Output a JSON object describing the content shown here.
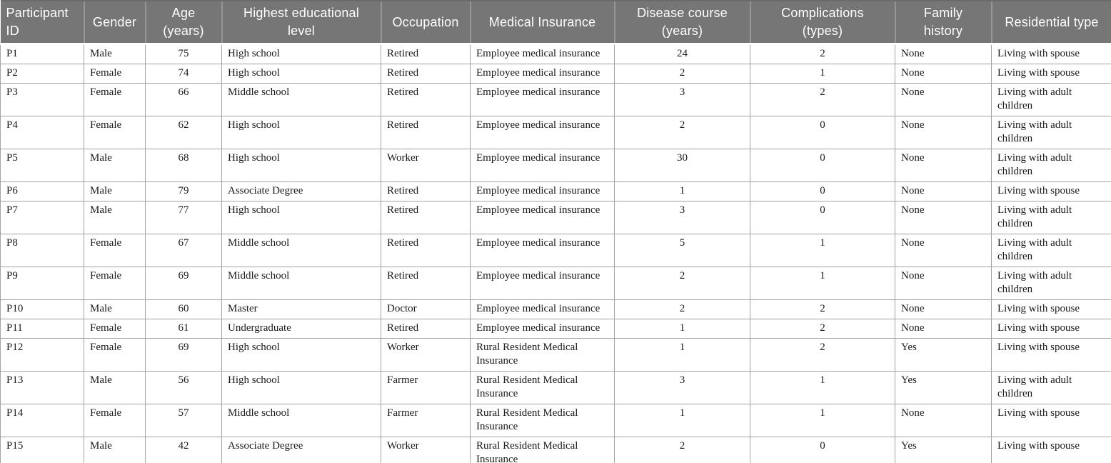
{
  "colors": {
    "header_background": "#767676",
    "header_text": "#ffffff",
    "cell_border": "#a3a3a3",
    "body_text": "#1a1a1a",
    "bottom_rule": "#8f8f8f"
  },
  "table": {
    "columns": [
      {
        "key": "participant-id",
        "label": "Participant ID"
      },
      {
        "key": "gender",
        "label": "Gender"
      },
      {
        "key": "age",
        "label": "Age\n(years)"
      },
      {
        "key": "education",
        "label": "Highest educational\nlevel"
      },
      {
        "key": "occupation",
        "label": "Occupation"
      },
      {
        "key": "medical-insurance",
        "label": "Medical Insurance"
      },
      {
        "key": "disease-course",
        "label": "Disease course\n(years)"
      },
      {
        "key": "complications",
        "label": "Complications\n(types)"
      },
      {
        "key": "family-history",
        "label": "Family\nhistory"
      },
      {
        "key": "residential-type",
        "label": "Residential type"
      }
    ],
    "rows": [
      [
        "P1",
        "Male",
        "75",
        "High school",
        "Retired",
        "Employee medical insurance",
        "24",
        "2",
        "None",
        "Living with spouse"
      ],
      [
        "P2",
        "Female",
        "74",
        "High school",
        "Retired",
        "Employee medical insurance",
        "2",
        "1",
        "None",
        "Living with spouse"
      ],
      [
        "P3",
        "Female",
        "66",
        "Middle school",
        "Retired",
        "Employee medical insurance",
        "3",
        "2",
        "None",
        "Living with adult children"
      ],
      [
        "P4",
        "Female",
        "62",
        "High school",
        "Retired",
        "Employee medical insurance",
        "2",
        "0",
        "None",
        "Living with adult children"
      ],
      [
        "P5",
        "Male",
        "68",
        "High school",
        "Worker",
        "Employee medical insurance",
        "30",
        "0",
        "None",
        "Living with adult children"
      ],
      [
        "P6",
        "Male",
        "79",
        "Associate Degree",
        "Retired",
        "Employee medical insurance",
        "1",
        "0",
        "None",
        "Living with spouse"
      ],
      [
        "P7",
        "Male",
        "77",
        "High school",
        "Retired",
        "Employee medical insurance",
        "3",
        "0",
        "None",
        "Living with adult children"
      ],
      [
        "P8",
        "Female",
        "67",
        "Middle school",
        "Retired",
        "Employee medical insurance",
        "5",
        "1",
        "None",
        "Living with adult children"
      ],
      [
        "P9",
        "Female",
        "69",
        "Middle school",
        "Retired",
        "Employee medical insurance",
        "2",
        "1",
        "None",
        "Living with adult children"
      ],
      [
        "P10",
        "Male",
        "60",
        "Master",
        "Doctor",
        "Employee medical insurance",
        "2",
        "2",
        "None",
        "Living with spouse"
      ],
      [
        "P11",
        "Female",
        "61",
        "Undergraduate",
        "Retired",
        "Employee medical insurance",
        "1",
        "2",
        "None",
        "Living with spouse"
      ],
      [
        "P12",
        "Female",
        "69",
        "High school",
        "Worker",
        "Rural Resident Medical Insurance",
        "1",
        "2",
        "Yes",
        "Living with spouse"
      ],
      [
        "P13",
        "Male",
        "56",
        "High school",
        "Farmer",
        "Rural Resident Medical Insurance",
        "3",
        "1",
        "Yes",
        "Living with adult children"
      ],
      [
        "P14",
        "Female",
        "57",
        "Middle school",
        "Farmer",
        "Rural Resident Medical Insurance",
        "1",
        "1",
        "None",
        "Living with spouse"
      ],
      [
        "P15",
        "Male",
        "42",
        "Associate Degree",
        "Worker",
        "Rural Resident Medical Insurance",
        "2",
        "0",
        "Yes",
        "Living with spouse"
      ]
    ]
  }
}
